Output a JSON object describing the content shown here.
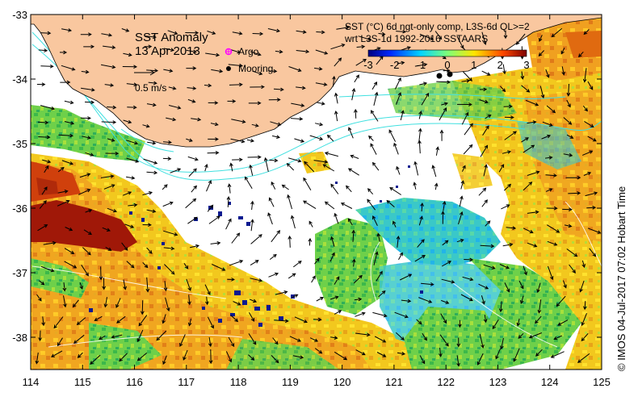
{
  "title": "SST Anomaly",
  "date": "13 Apr 2013",
  "scale_vector_label": "0.5 m/s",
  "legend": {
    "argo_label": "Argo",
    "mooring_label": "Mooring",
    "argo_color": "#ff00ff",
    "mooring_color": "#000000"
  },
  "product": {
    "line1": "SST (°C) 6d ngt-only comp, L3S-6d QL>=2",
    "line2": "wrt L3S-1d 1992-2016 SSTAARS"
  },
  "colorbar": {
    "ticks": [
      "-3",
      "-2",
      "-1",
      "0",
      "1",
      "2",
      "3"
    ],
    "colors": [
      "#00007f",
      "#0028ff",
      "#00d4ff",
      "#7dff7a",
      "#ffe600",
      "#ff4800",
      "#7f0000"
    ]
  },
  "axes": {
    "x_ticks": [
      "114",
      "115",
      "116",
      "117",
      "118",
      "119",
      "120",
      "121",
      "122",
      "123",
      "124",
      "125"
    ],
    "y_ticks": [
      "-33",
      "-34",
      "-35",
      "-36",
      "-37",
      "-38"
    ]
  },
  "colors": {
    "land": "#f9c79f",
    "no_data": "#ffffff",
    "contour": "#40e0e0"
  },
  "credit": "©  IMOS 04-Jul-2017 07:02 Hobart Time"
}
